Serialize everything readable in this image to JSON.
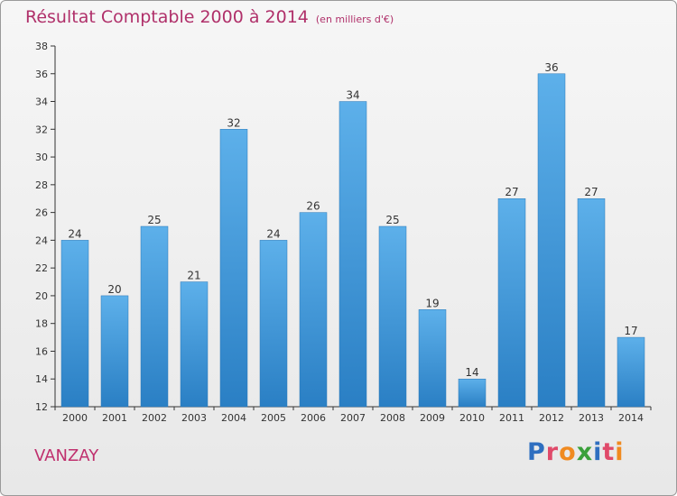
{
  "chart_data": {
    "type": "bar",
    "title": "Résultat Comptable 2000 à 2014",
    "subtitle": "(en milliers d'€)",
    "categories": [
      "2000",
      "2001",
      "2002",
      "2003",
      "2004",
      "2005",
      "2006",
      "2007",
      "2008",
      "2009",
      "2010",
      "2011",
      "2012",
      "2013",
      "2014"
    ],
    "values": [
      24,
      20,
      25,
      21,
      32,
      24,
      26,
      34,
      25,
      19,
      14,
      27,
      36,
      27,
      17
    ],
    "ylim": [
      12,
      38
    ],
    "yticks": [
      12,
      14,
      16,
      18,
      20,
      22,
      24,
      26,
      28,
      30,
      32,
      34,
      36,
      38
    ],
    "xlabel": "",
    "ylabel": "",
    "grid": false
  },
  "commune": "VANZAY",
  "logo": {
    "text": "Proxiti",
    "letter_colors": [
      "#2f6fc0",
      "#e04a6a",
      "#f08a20",
      "#3aa03a",
      "#2f6fc0",
      "#e04a6a",
      "#f08a20"
    ]
  },
  "colors": {
    "bar_top": "#5db0ea",
    "bar_bottom": "#2a7fc4",
    "title": "#b0306a",
    "axis": "#333333"
  }
}
